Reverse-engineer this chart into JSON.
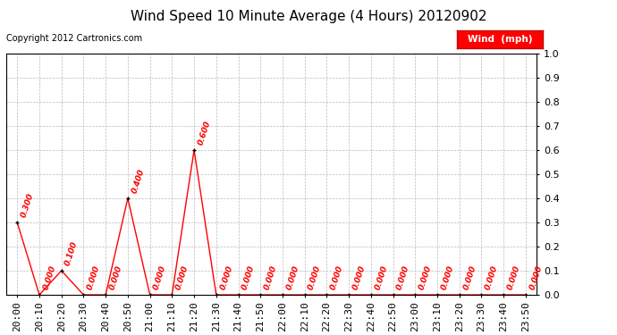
{
  "title": "Wind Speed 10 Minute Average (4 Hours) 20120902",
  "copyright": "Copyright 2012 Cartronics.com",
  "legend_label": "Wind  (mph)",
  "legend_bg": "#ff0000",
  "legend_text_color": "#ffffff",
  "line_color": "#ff0000",
  "marker_color": "#000000",
  "annotation_color": "#ff0000",
  "x_labels": [
    "20:00",
    "20:10",
    "20:20",
    "20:30",
    "20:40",
    "20:50",
    "21:00",
    "21:10",
    "21:20",
    "21:30",
    "21:40",
    "21:50",
    "22:00",
    "22:10",
    "22:20",
    "22:30",
    "22:40",
    "22:50",
    "23:00",
    "23:10",
    "23:20",
    "23:30",
    "23:40",
    "23:50"
  ],
  "y_values": [
    0.3,
    0.0,
    0.1,
    0.0,
    0.0,
    0.4,
    0.0,
    0.0,
    0.6,
    0.0,
    0.0,
    0.0,
    0.0,
    0.0,
    0.0,
    0.0,
    0.0,
    0.0,
    0.0,
    0.0,
    0.0,
    0.0,
    0.0,
    0.0
  ],
  "ylim": [
    0.0,
    1.0
  ],
  "yticks": [
    0.0,
    0.1,
    0.2,
    0.3,
    0.4,
    0.5,
    0.6,
    0.7,
    0.8,
    0.9,
    1.0
  ],
  "bg_color": "#ffffff",
  "grid_color": "#bbbbbb",
  "title_fontsize": 11,
  "tick_fontsize": 8,
  "annot_fontsize": 6.5,
  "copyright_fontsize": 7
}
